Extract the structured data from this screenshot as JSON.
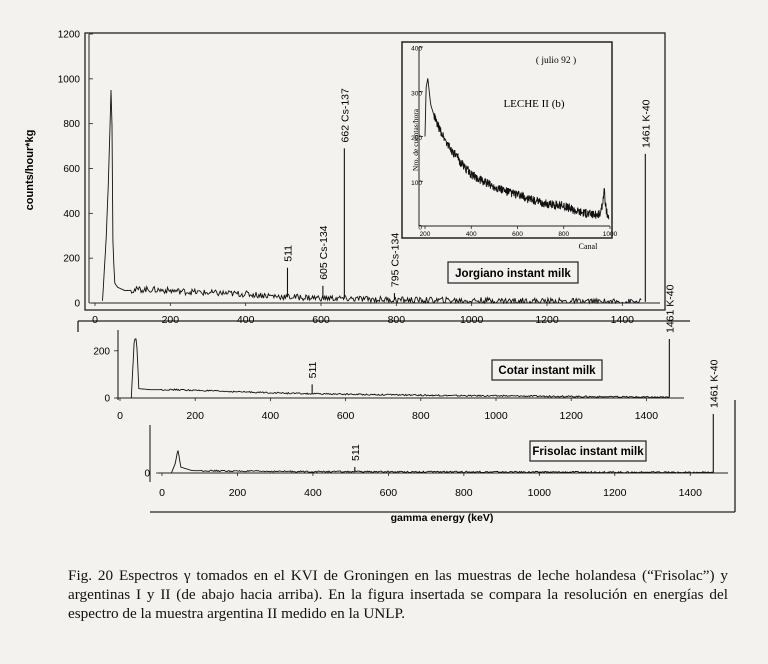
{
  "caption": "Fig. 20 Espectros γ tomados en el KVI de Groningen en las muestras de leche holandesa (“Frisolac”) y argentinas I y II (de abajo hacia arriba). En la figura insertada se compara la resolución en energías del espectro de la muestra argentina II medido en la UNLP.",
  "chart_data": [
    {
      "type": "line",
      "panel": "top",
      "label": "Jorgiano instant milk",
      "ylabel": "counts/hour*kg",
      "xlim": [
        0,
        1500
      ],
      "ylim": [
        0,
        1200
      ],
      "xticks": [
        0,
        200,
        400,
        600,
        800,
        1000,
        1200,
        1400
      ],
      "yticks": [
        0,
        200,
        400,
        600,
        800,
        1000,
        1200
      ],
      "baseline": [
        [
          20,
          10
        ],
        [
          30,
          300
        ],
        [
          36,
          560
        ],
        [
          40,
          800
        ],
        [
          44,
          1040
        ],
        [
          47,
          300
        ],
        [
          52,
          90
        ],
        [
          60,
          70
        ],
        [
          80,
          55
        ],
        [
          120,
          60
        ],
        [
          150,
          60
        ],
        [
          200,
          55
        ],
        [
          300,
          45
        ],
        [
          400,
          40
        ],
        [
          500,
          28
        ],
        [
          600,
          22
        ],
        [
          700,
          18
        ],
        [
          800,
          14
        ],
        [
          900,
          12
        ],
        [
          1000,
          11
        ],
        [
          1100,
          10
        ],
        [
          1200,
          8
        ],
        [
          1300,
          6
        ],
        [
          1400,
          5
        ],
        [
          1450,
          5
        ]
      ],
      "peaks": [
        {
          "x": 511,
          "y": 130,
          "label": "511"
        },
        {
          "x": 605,
          "y": 55,
          "label": "605 Cs-134"
        },
        {
          "x": 662,
          "y": 670,
          "label": "662 Cs-137"
        },
        {
          "x": 795,
          "y": 30,
          "label": "795 Cs-134"
        },
        {
          "x": 1461,
          "y": 660,
          "label": "1461 K-40"
        }
      ]
    },
    {
      "type": "line",
      "panel": "middle",
      "label": "Cotar instant milk",
      "xlim": [
        0,
        1500
      ],
      "ylim": [
        0,
        250
      ],
      "xticks": [
        0,
        200,
        400,
        600,
        800,
        1000,
        1200,
        1400
      ],
      "yticks": [
        0,
        200
      ],
      "baseline": [
        [
          30,
          0
        ],
        [
          38,
          250
        ],
        [
          44,
          250
        ],
        [
          50,
          40
        ],
        [
          80,
          35
        ],
        [
          150,
          35
        ],
        [
          300,
          27
        ],
        [
          500,
          18
        ],
        [
          700,
          14
        ],
        [
          900,
          10
        ],
        [
          1100,
          8
        ],
        [
          1300,
          5
        ],
        [
          1460,
          3
        ]
      ],
      "peaks": [
        {
          "x": 511,
          "y": 40,
          "label": "511"
        },
        {
          "x": 1461,
          "y": 250,
          "label": "1461 K-40"
        }
      ]
    },
    {
      "type": "line",
      "panel": "bottom",
      "label": "Frisolac instant milk",
      "xlabel": "gamma energy (keV)",
      "xlim": [
        0,
        1500
      ],
      "ylim": [
        0,
        250
      ],
      "xticks": [
        0,
        200,
        400,
        600,
        800,
        1000,
        1200,
        1400
      ],
      "yticks": [
        0
      ],
      "baseline": [
        [
          25,
          0
        ],
        [
          35,
          40
        ],
        [
          42,
          100
        ],
        [
          50,
          25
        ],
        [
          80,
          10
        ],
        [
          200,
          8
        ],
        [
          400,
          6
        ],
        [
          700,
          5
        ],
        [
          1000,
          4
        ],
        [
          1300,
          3
        ],
        [
          1460,
          2
        ]
      ],
      "peaks": [
        {
          "x": 511,
          "y": 20,
          "label": "511"
        },
        {
          "x": 1461,
          "y": 250,
          "label": "1461 K-40"
        }
      ]
    },
    {
      "type": "line",
      "panel": "inset",
      "title": "( julio 92 )",
      "label": "LECHE II (b)",
      "xlabel": "Canal",
      "ylabel": "Nro. de cuentas/hora",
      "xlim": [
        200,
        1000
      ],
      "ylim": [
        0,
        400
      ],
      "xticks": [
        200,
        400,
        600,
        800,
        1000
      ],
      "yticks": [
        0,
        100,
        200,
        300,
        400
      ],
      "baseline": [
        [
          200,
          200
        ],
        [
          205,
          310
        ],
        [
          212,
          330
        ],
        [
          225,
          270
        ],
        [
          250,
          230
        ],
        [
          300,
          180
        ],
        [
          350,
          145
        ],
        [
          400,
          115
        ],
        [
          450,
          100
        ],
        [
          500,
          88
        ],
        [
          550,
          78
        ],
        [
          600,
          70
        ],
        [
          650,
          60
        ],
        [
          700,
          52
        ],
        [
          750,
          48
        ],
        [
          800,
          45
        ],
        [
          850,
          35
        ],
        [
          900,
          28
        ],
        [
          940,
          25
        ],
        [
          960,
          28
        ],
        [
          970,
          60
        ],
        [
          975,
          80
        ],
        [
          982,
          40
        ],
        [
          995,
          10
        ]
      ],
      "peaks": []
    }
  ]
}
